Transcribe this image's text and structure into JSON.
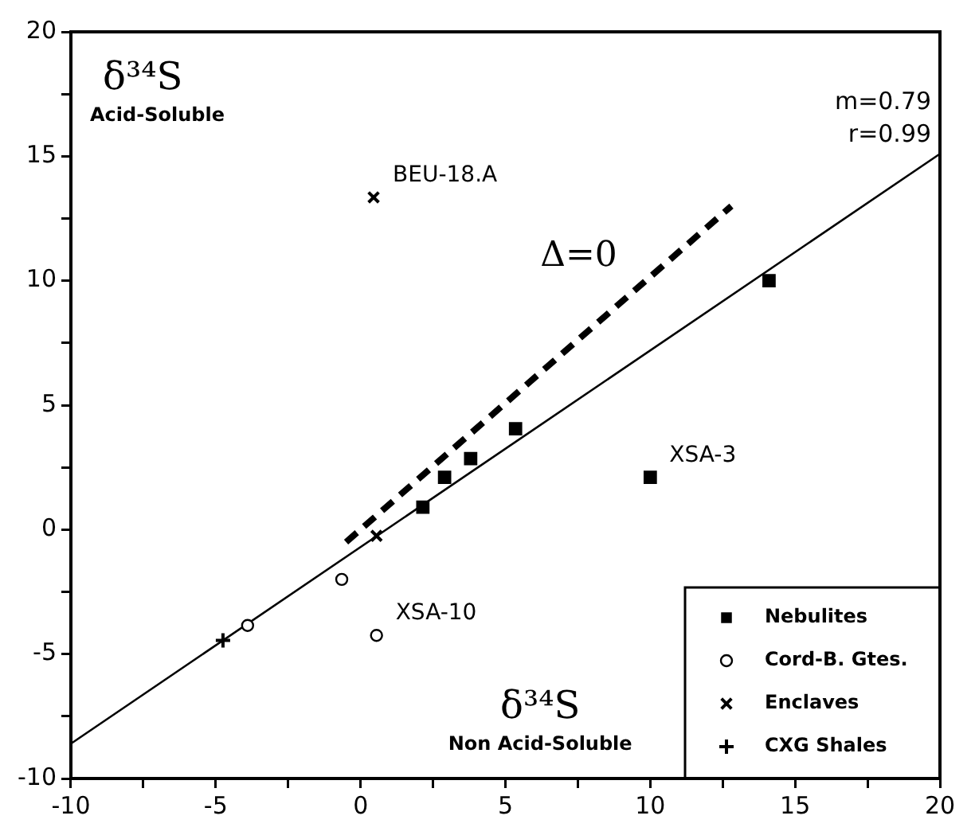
{
  "chart_data": {
    "type": "scatter",
    "ylabel": "δ³⁴S Acid-Soluble",
    "xlabel": "δ³⁴S Non Acid-Soluble",
    "xlim": [
      -10,
      20
    ],
    "ylim": [
      -10,
      20
    ],
    "xticks": [
      -10,
      {
        "value": -7.5,
        "label": null
      },
      -5,
      {
        "value": -2.5,
        "label": null
      },
      0,
      {
        "value": 2.5,
        "label": null
      },
      5,
      {
        "value": 7.5,
        "label": null
      },
      10,
      {
        "value": 12.5,
        "label": null
      },
      15,
      {
        "value": 17.5,
        "label": null
      },
      20
    ],
    "yticks": [
      -10,
      {
        "value": -7.5,
        "label": null
      },
      -5,
      {
        "value": -2.5,
        "label": null
      },
      0,
      {
        "value": 2.5,
        "label": null
      },
      5,
      {
        "value": 7.5,
        "label": null
      },
      10,
      {
        "value": 12.5,
        "label": null
      },
      15,
      {
        "value": 17.5,
        "label": null
      },
      20
    ],
    "grid": false,
    "legend": "bottom right",
    "series": [
      {
        "name": "Nebulites",
        "marker": "square",
        "color": "#000000",
        "x": [
          2.15,
          2.9,
          3.8,
          5.35,
          10.0,
          14.1
        ],
        "values": [
          0.9,
          2.1,
          2.85,
          4.05,
          2.1,
          10.0
        ]
      },
      {
        "name": "Cord-B. Gtes.",
        "marker": "circle",
        "color": "#000000",
        "x": [
          -3.9,
          -0.65,
          0.55
        ],
        "values": [
          -3.85,
          -2.0,
          -4.25
        ]
      },
      {
        "name": "Enclaves",
        "marker": "cross",
        "color": "#000000",
        "x": [
          0.45,
          0.55
        ],
        "values": [
          13.35,
          -0.25
        ]
      },
      {
        "name": "CXG Shales",
        "marker": "plus",
        "color": "#000000",
        "x": [
          -4.75
        ],
        "values": [
          -4.45
        ]
      },
      {
        "type": "line",
        "marker": "none",
        "line_style": "solid",
        "color": "#000000",
        "x": [
          -10,
          20
        ],
        "values": [
          -8.6,
          15.1
        ]
      },
      {
        "type": "line",
        "marker": "none",
        "line_style": "dashed",
        "color": "#000000",
        "x": [
          -0.5,
          12.8
        ],
        "values": [
          -0.5,
          13.0
        ]
      }
    ],
    "annotations": [
      {
        "text": "BEU-18.A",
        "x": 0.45,
        "y": 13.35
      },
      {
        "text": "XSA-3",
        "x": 10.0,
        "y": 2.1
      },
      {
        "text": "XSA-10",
        "x": 0.55,
        "y": -4.25
      },
      "Δ=0",
      "m=0.79",
      "r=0.99"
    ]
  }
}
